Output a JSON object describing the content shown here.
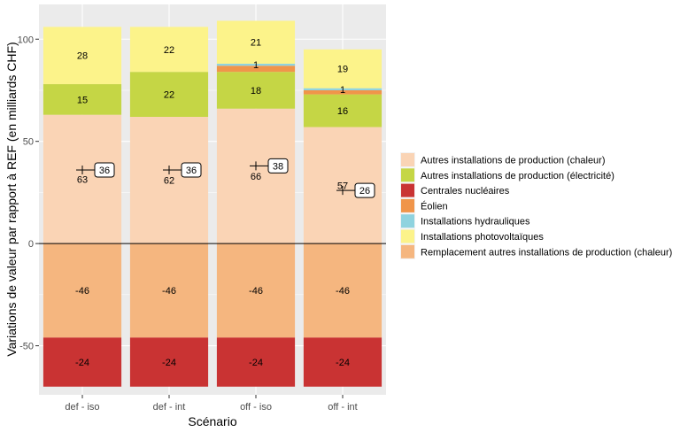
{
  "chart_data": {
    "type": "bar",
    "stacked": true,
    "title": "",
    "xlabel": "Scénario",
    "ylabel": "Variations de valeur par rapport à REF (en milliards CHF)",
    "ylim": [
      -74,
      117
    ],
    "yticks": [
      -50,
      0,
      50,
      100
    ],
    "grid": true,
    "legend_position": "right",
    "categories": [
      "def - iso",
      "def - int",
      "off - iso",
      "off - int"
    ],
    "series": [
      {
        "name": "Autres installations de production (chaleur)",
        "color": "#FAD4B5",
        "values": [
          63,
          62,
          66,
          57
        ],
        "labels": [
          "63",
          "62",
          "66",
          "57"
        ]
      },
      {
        "name": "Autres installations de production (électricité)",
        "color": "#C5D645",
        "values": [
          15,
          22,
          18,
          16
        ],
        "labels": [
          "15",
          "22",
          "18",
          "16"
        ]
      },
      {
        "name": "Centrales nucléaires",
        "color": "#C93333",
        "values": [
          0,
          0,
          0,
          0
        ],
        "labels": [
          "",
          "",
          "",
          ""
        ]
      },
      {
        "name": "Éolien",
        "color": "#F0954A",
        "values": [
          0,
          0,
          3,
          2
        ],
        "labels": [
          "",
          "",
          "",
          ""
        ]
      },
      {
        "name": "Installations hydrauliques",
        "color": "#8FD3DF",
        "values": [
          0,
          0,
          1,
          1
        ],
        "labels": [
          "",
          "",
          "1",
          "1"
        ]
      },
      {
        "name": "Installations photovoltaïques",
        "color": "#FCF38A",
        "values": [
          28,
          22,
          21,
          19
        ],
        "labels": [
          "28",
          "22",
          "21",
          "19"
        ]
      }
    ],
    "negative_series": [
      {
        "name": "Remplacement autres installations de production (chaleur)",
        "color": "#F5B67F",
        "values": [
          -46,
          -46,
          -46,
          -46
        ],
        "labels": [
          "-46",
          "-46",
          "-46",
          "-46"
        ]
      },
      {
        "name": "Centrales nucléaires",
        "color": "#C93333",
        "values": [
          -24,
          -24,
          -24,
          -24
        ],
        "labels": [
          "-24",
          "-24",
          "-24",
          "-24"
        ]
      }
    ],
    "net_totals": {
      "values": [
        36,
        36,
        38,
        26
      ],
      "labels": [
        "36",
        "36",
        "38",
        "26"
      ]
    },
    "legend": [
      {
        "label": "Autres installations de production (chaleur)",
        "color": "#FAD4B5"
      },
      {
        "label": "Autres installations de production (électricité)",
        "color": "#C5D645"
      },
      {
        "label": "Centrales nucléaires",
        "color": "#C93333"
      },
      {
        "label": "Éolien",
        "color": "#F0954A"
      },
      {
        "label": "Installations hydrauliques",
        "color": "#8FD3DF"
      },
      {
        "label": "Installations photovoltaïques",
        "color": "#FCF38A"
      },
      {
        "label": "Remplacement autres installations de production (chaleur)",
        "color": "#F5B67F"
      }
    ],
    "panel_color": "#EBEBEB",
    "grid_color": "#FFFFFF"
  }
}
